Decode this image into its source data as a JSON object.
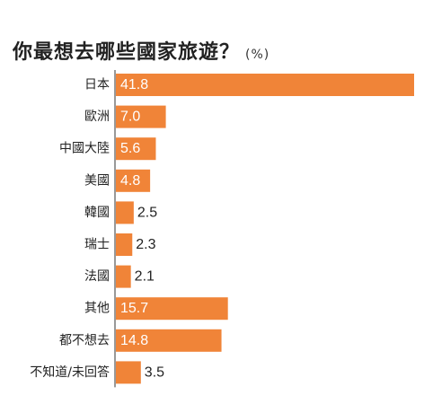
{
  "chart_data": {
    "type": "bar",
    "orientation": "horizontal",
    "title": "你最想去哪些國家旅遊？",
    "unit": "(%)",
    "categories": [
      "日本",
      "歐洲",
      "中國大陸",
      "美國",
      "韓國",
      "瑞士",
      "法國",
      "其他",
      "都不想去",
      "不知道/未回答"
    ],
    "values": [
      41.8,
      7.0,
      5.6,
      4.8,
      2.5,
      2.3,
      2.1,
      15.7,
      14.8,
      3.5
    ],
    "value_labels": [
      "41.8",
      "7.0",
      "5.6",
      "4.8",
      "2.5",
      "2.3",
      "2.1",
      "15.7",
      "14.8",
      "3.5"
    ],
    "xlim": [
      0,
      41.8
    ],
    "grid": false,
    "legend": "none",
    "bar_color": "#F08438",
    "label_inside_color": "#ffffff",
    "label_outside_color": "#222222",
    "axis_color": "#333333"
  }
}
